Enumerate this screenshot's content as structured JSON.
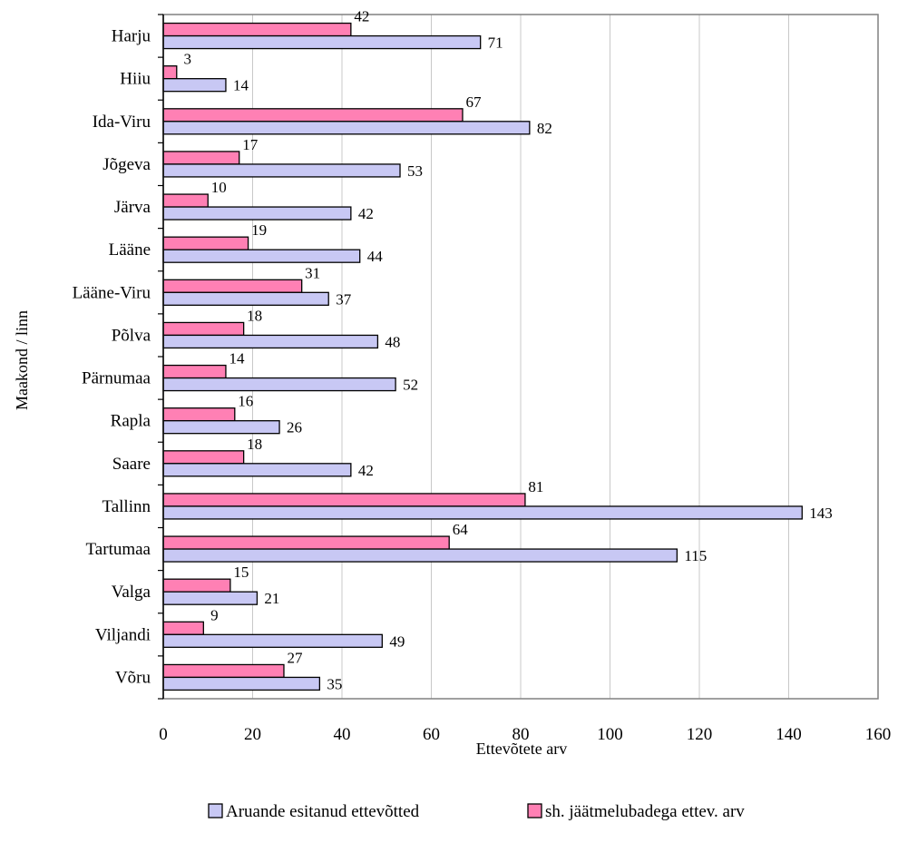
{
  "chart_data": {
    "type": "bar",
    "orientation": "horizontal",
    "categories": [
      "Harju",
      "Hiiu",
      "Ida-Viru",
      "Jõgeva",
      "Järva",
      "Lääne",
      "Lääne-Viru",
      "Põlva",
      "Pärnumaa",
      "Rapla",
      "Saare",
      "Tallinn",
      "Tartumaa",
      "Valga",
      "Viljandi",
      "Võru"
    ],
    "series": [
      {
        "name": "sh. jäätmelubadega ettev. arv",
        "color": "#ff80b4",
        "values": [
          42,
          3,
          67,
          17,
          10,
          19,
          31,
          18,
          14,
          16,
          18,
          81,
          64,
          15,
          9,
          27
        ]
      },
      {
        "name": "Aruande esitanud ettevõtted",
        "color": "#c8c8f4",
        "values": [
          71,
          14,
          82,
          53,
          42,
          44,
          37,
          48,
          52,
          26,
          42,
          143,
          115,
          21,
          49,
          35
        ]
      }
    ],
    "xlabel": "Ettevõtete arv",
    "ylabel": "Maakond / linn",
    "xlim": [
      0,
      160
    ],
    "xticks": [
      0,
      20,
      40,
      60,
      80,
      100,
      120,
      140,
      160
    ],
    "grid": "vertical",
    "legend_position": "bottom",
    "legend": [
      {
        "label": "Aruande esitanud ettevõtted",
        "color": "#c8c8f4"
      },
      {
        "label": "sh. jäätmelubadega ettev. arv",
        "color": "#ff80b4"
      }
    ]
  }
}
